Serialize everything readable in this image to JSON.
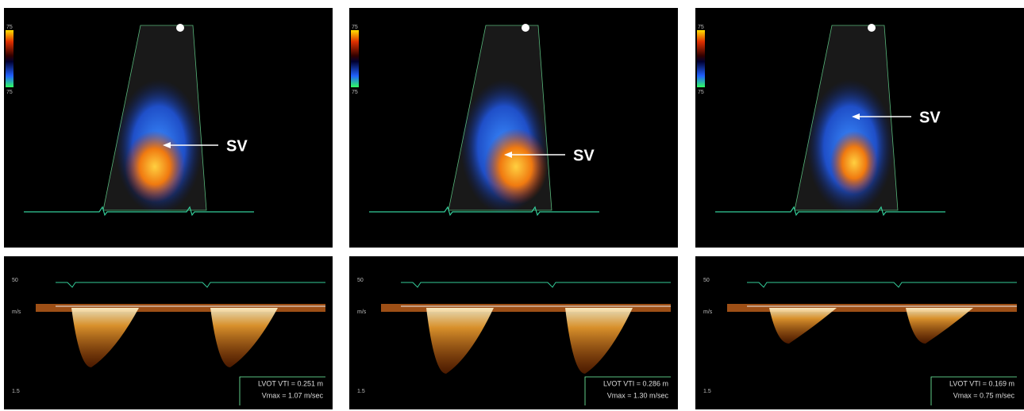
{
  "panels": [
    {
      "sv_label": "SV",
      "colorbar_labels": [
        "75",
        "75"
      ],
      "scale_labels": [
        "50",
        "m/s",
        "1.5"
      ],
      "measurements": [
        "LVOT VTI = 0.251 m",
        "Vmax = 1.07 m/sec"
      ]
    },
    {
      "sv_label": "SV",
      "colorbar_labels": [
        "75",
        "75"
      ],
      "scale_labels": [
        "50",
        "m/s",
        "1.5"
      ],
      "measurements": [
        "LVOT VTI = 0.286 m",
        "Vmax = 1.30 m/sec"
      ]
    },
    {
      "sv_label": "SV",
      "colorbar_labels": [
        "75",
        "75"
      ],
      "scale_labels": [
        "50",
        "m/s",
        "1.5"
      ],
      "measurements": [
        "LVOT VTI = 0.169 m",
        "Vmax = 0.75 m/sec"
      ]
    }
  ]
}
